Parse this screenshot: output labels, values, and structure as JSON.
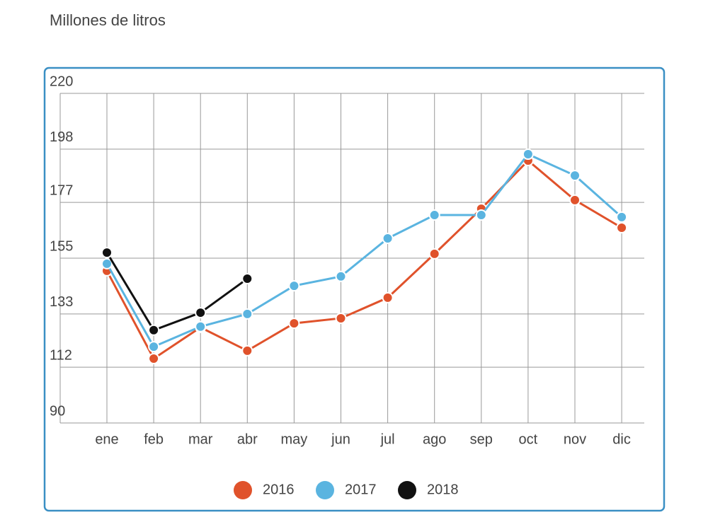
{
  "chart_data": {
    "type": "line",
    "title": "Millones de litros",
    "categories": [
      "ene",
      "feb",
      "mar",
      "abr",
      "may",
      "jun",
      "jul",
      "ago",
      "sep",
      "oct",
      "nov",
      "dic"
    ],
    "series": [
      {
        "name": "2016",
        "color": "#e0522b",
        "values": [
          150,
          115.4,
          127.7,
          118.5,
          129.3,
          131.3,
          139.4,
          156.7,
          174.5,
          193.5,
          177.9,
          167
        ]
      },
      {
        "name": "2017",
        "color": "#5ab4e0",
        "values": [
          152.8,
          120.1,
          128,
          133,
          144.1,
          147.8,
          162.8,
          172,
          172,
          196,
          187.6,
          171.2
        ]
      },
      {
        "name": "2018",
        "color": "#111111",
        "values": [
          157.2,
          126.6,
          133.5,
          146.9,
          null,
          null,
          null,
          null,
          null,
          null,
          null,
          null
        ]
      }
    ],
    "ylim": [
      90,
      220
    ],
    "yticks": [
      90,
      112,
      133,
      155,
      177,
      198,
      220
    ],
    "grid": true,
    "legend": "bottom"
  }
}
